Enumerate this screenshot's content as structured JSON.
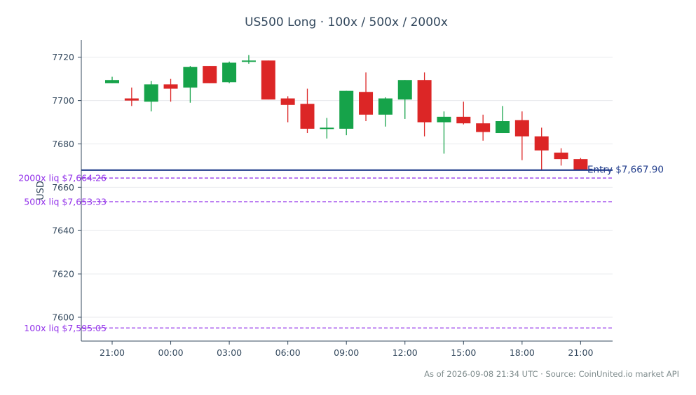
{
  "chart_data": {
    "type": "candlestick",
    "title": "US500 Long · 100x / 500x / 2000x",
    "ylabel": "USD",
    "xlabel": "",
    "ylim": [
      7589,
      7728
    ],
    "grid": true,
    "x_ticks": [
      "21:00",
      "00:00",
      "03:00",
      "06:00",
      "09:00",
      "12:00",
      "15:00",
      "18:00",
      "21:00"
    ],
    "y_ticks": [
      7600,
      7620,
      7640,
      7660,
      7680,
      7700,
      7720
    ],
    "up_color": "#16a34a",
    "down_color": "#dc2626",
    "candles": [
      {
        "o": 7708.0,
        "h": 7711.0,
        "l": 7708.0,
        "c": 7709.5
      },
      {
        "o": 7701.0,
        "h": 7706.0,
        "l": 7697.5,
        "c": 7700.0
      },
      {
        "o": 7699.5,
        "h": 7709.0,
        "l": 7695.0,
        "c": 7707.5
      },
      {
        "o": 7707.5,
        "h": 7710.0,
        "l": 7699.5,
        "c": 7705.5
      },
      {
        "o": 7706.0,
        "h": 7716.0,
        "l": 7699.0,
        "c": 7715.5
      },
      {
        "o": 7716.0,
        "h": 7716.0,
        "l": 7708.0,
        "c": 7708.0
      },
      {
        "o": 7708.5,
        "h": 7718.0,
        "l": 7708.0,
        "c": 7717.5
      },
      {
        "o": 7718.0,
        "h": 7721.0,
        "l": 7717.0,
        "c": 7718.5
      },
      {
        "o": 7718.5,
        "h": 7718.5,
        "l": 7700.5,
        "c": 7700.5
      },
      {
        "o": 7701.0,
        "h": 7702.0,
        "l": 7690.0,
        "c": 7698.0
      },
      {
        "o": 7698.5,
        "h": 7705.5,
        "l": 7685.0,
        "c": 7687.0
      },
      {
        "o": 7687.5,
        "h": 7692.0,
        "l": 7682.5,
        "c": 7687.5
      },
      {
        "o": 7687.0,
        "h": 7704.5,
        "l": 7684.0,
        "c": 7704.5
      },
      {
        "o": 7704.0,
        "h": 7713.0,
        "l": 7690.5,
        "c": 7693.5
      },
      {
        "o": 7693.5,
        "h": 7701.5,
        "l": 7688.0,
        "c": 7701.0
      },
      {
        "o": 7700.5,
        "h": 7709.5,
        "l": 7691.5,
        "c": 7709.5
      },
      {
        "o": 7709.5,
        "h": 7713.0,
        "l": 7683.5,
        "c": 7690.0
      },
      {
        "o": 7690.0,
        "h": 7695.0,
        "l": 7675.5,
        "c": 7692.5
      },
      {
        "o": 7692.5,
        "h": 7699.5,
        "l": 7689.0,
        "c": 7689.5
      },
      {
        "o": 7689.5,
        "h": 7693.5,
        "l": 7681.5,
        "c": 7685.5
      },
      {
        "o": 7685.0,
        "h": 7697.5,
        "l": 7685.0,
        "c": 7690.5
      },
      {
        "o": 7691.0,
        "h": 7695.0,
        "l": 7672.5,
        "c": 7683.5
      },
      {
        "o": 7683.5,
        "h": 7687.5,
        "l": 7668.0,
        "c": 7677.0
      },
      {
        "o": 7676.0,
        "h": 7678.0,
        "l": 7670.0,
        "c": 7673.0
      },
      {
        "o": 7673.0,
        "h": 7673.5,
        "l": 7668.0,
        "c": 7668.0
      }
    ],
    "entry": {
      "value": 7667.9,
      "label": "Entry $7,667.90",
      "color": "#1e3a8a"
    },
    "liquidation_lines": [
      {
        "value": 7664.26,
        "label": "2000x liq $7,664.26"
      },
      {
        "value": 7653.33,
        "label": "500x liq $7,653.33"
      },
      {
        "value": 7595.05,
        "label": "100x liq $7,595.05"
      }
    ],
    "liq_color": "#9333ea"
  },
  "footer": "As of 2026-09-08 21:34 UTC · Source: CoinUnited.io market API"
}
